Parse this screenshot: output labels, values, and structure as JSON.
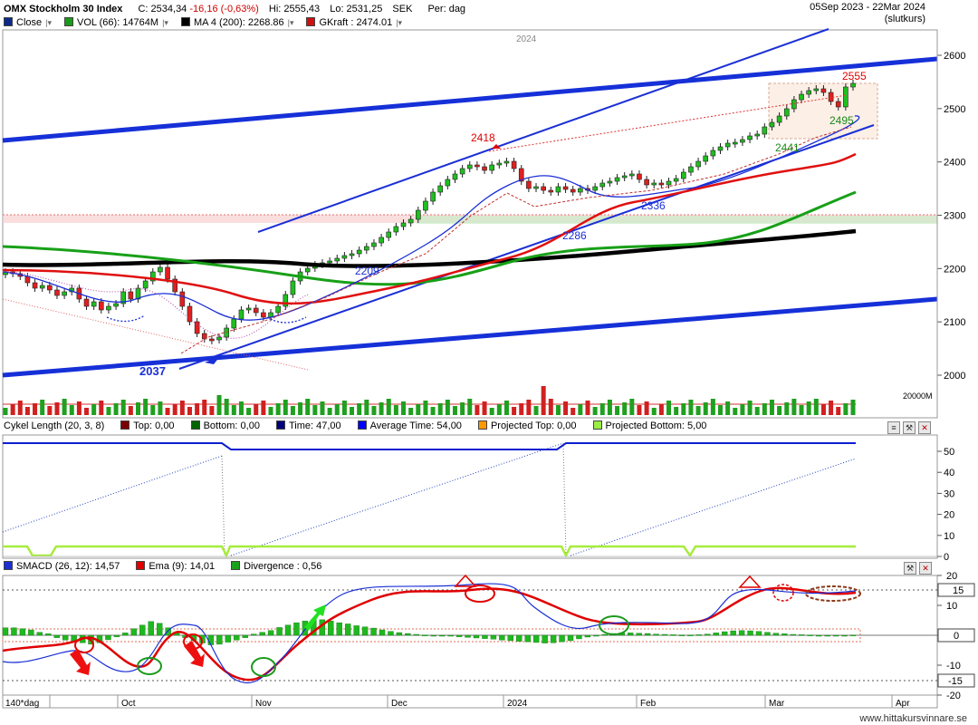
{
  "header": {
    "title": "OMX Stockholm 30 Index",
    "close": "C: 2534,34",
    "change": "-16,16 (-0,63%)",
    "high": "Hi: 2555,43",
    "low": "Lo: 2531,25",
    "currency": "SEK",
    "period": "Per: dag",
    "date_range": "05Sep 2023 - 22Mar 2024",
    "price_basis": "(slutkurs)",
    "legend": [
      {
        "label": "Close",
        "color": "#0b2a8c",
        "dropdown": true
      },
      {
        "label": "VOL (66): 14764M",
        "color": "#1a9a1a",
        "dropdown": true
      },
      {
        "label": "MA 4 (200): 2268.86",
        "color": "#000000",
        "dropdown": true
      },
      {
        "label": "GKraft : 2474.01",
        "color": "#cc1111",
        "dropdown": true
      }
    ]
  },
  "price_panel": {
    "year_label": "2024",
    "y_ticks": [
      "2600",
      "2500",
      "2400",
      "2300",
      "2200",
      "2100",
      "2000"
    ],
    "volume_label": "20000M",
    "annotations": [
      "2555",
      "2418",
      "2495",
      "2441",
      "2336",
      "2286",
      "2209",
      "2037"
    ]
  },
  "cycle_panel": {
    "legend": [
      {
        "label": "Cykel Length (20, 3, 8)",
        "color": null
      },
      {
        "label": "Top: 0,00",
        "color": "#7a0000"
      },
      {
        "label": "Bottom: 0,00",
        "color": "#006400"
      },
      {
        "label": "Time: 47,00",
        "color": "#00007a"
      },
      {
        "label": "Average Time: 54,00",
        "color": "#0000ff"
      },
      {
        "label": "Projected Top: 0,00",
        "color": "#ff9900"
      },
      {
        "label": "Projected Bottom: 5,00",
        "color": "#99ee44"
      }
    ],
    "y_ticks": [
      "50",
      "40",
      "30",
      "20",
      "10",
      "0"
    ]
  },
  "smacd_panel": {
    "legend": [
      {
        "label": "SMACD (26, 12): 14,57",
        "color": "#1a2fd6"
      },
      {
        "label": "Ema (9): 14,01",
        "color": "#e00000"
      },
      {
        "label": "Divergence : 0,56",
        "color": "#1aa01a"
      }
    ],
    "y_ticks": [
      "20",
      "10",
      "0",
      "-10",
      "-20"
    ],
    "level_boxes": [
      "15",
      "0",
      "-15"
    ]
  },
  "x_axis": {
    "period_label": "140*dag",
    "months": [
      "Oct",
      "Nov",
      "Dec",
      "2024",
      "Feb",
      "Mar",
      "Apr"
    ]
  },
  "footer": {
    "site": "www.hittakursvinnare.se"
  },
  "chart_data": [
    {
      "type": "candlestick",
      "title": "OMX Stockholm 30 Index",
      "x": [
        "Sep 2023",
        "Oct 2023",
        "Nov 2023",
        "Dec 2023",
        "Jan 2024",
        "Feb 2024",
        "Mar 2024"
      ],
      "close": [
        2200,
        2120,
        2190,
        2395,
        2350,
        2380,
        2534
      ],
      "series": [
        {
          "name": "MA 4 (200)",
          "last": 2268.86
        },
        {
          "name": "GKraft",
          "last": 2474.01
        },
        {
          "name": "VOL (66)",
          "last": 14764
        }
      ],
      "ylim": [
        1950,
        2620
      ]
    },
    {
      "type": "line",
      "title": "Cykel Length (20, 3, 8)",
      "series": [
        {
          "name": "Time",
          "last": 47.0
        },
        {
          "name": "Average Time",
          "last": 54.0
        },
        {
          "name": "Projected Bottom",
          "last": 5.0
        }
      ],
      "ylim": [
        0,
        55
      ]
    },
    {
      "type": "line",
      "title": "SMACD (26, 12)",
      "series": [
        {
          "name": "SMACD (26, 12)",
          "last": 14.57
        },
        {
          "name": "Ema (9)",
          "last": 14.01
        },
        {
          "name": "Divergence",
          "last": 0.56
        }
      ],
      "ylim": [
        -22,
        22
      ]
    }
  ]
}
